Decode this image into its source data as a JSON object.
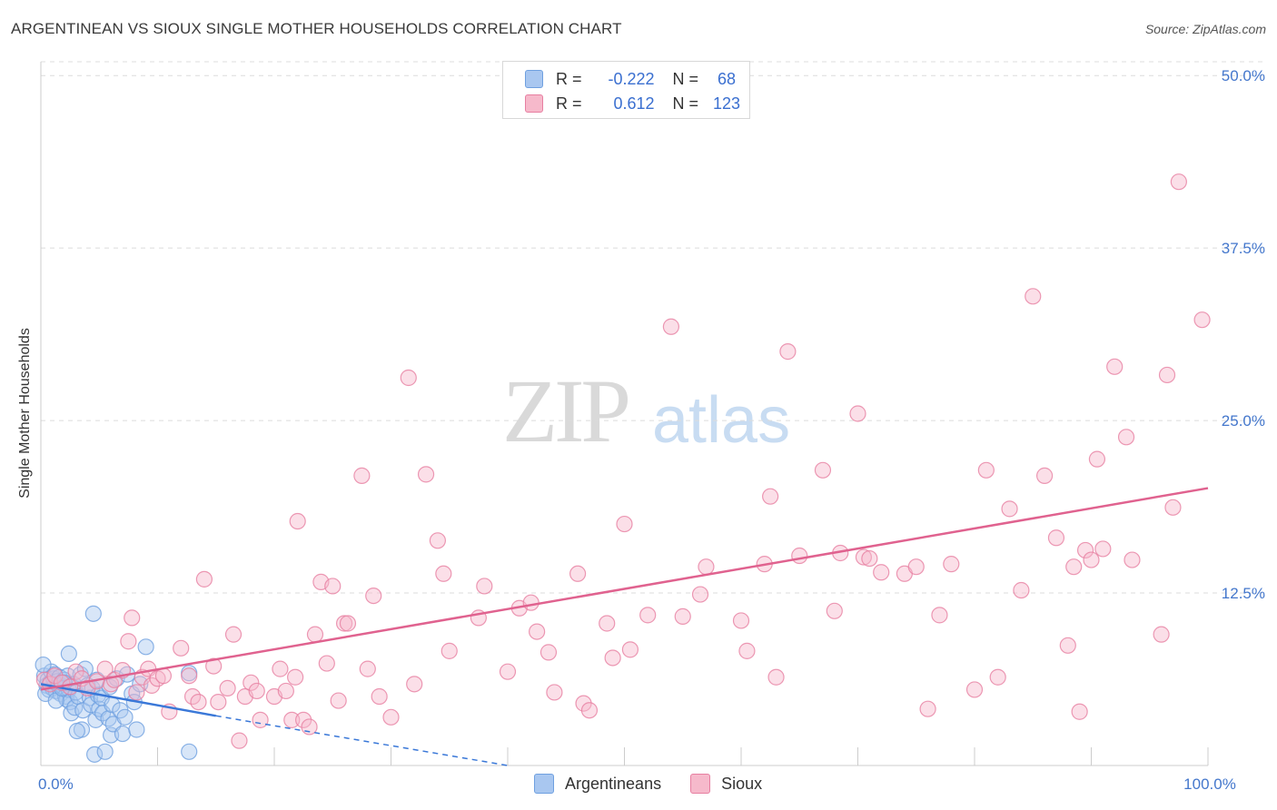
{
  "title": "ARGENTINEAN VS SIOUX SINGLE MOTHER HOUSEHOLDS CORRELATION CHART",
  "source": "Source: ZipAtlas.com",
  "watermark": {
    "zip": "ZIP",
    "atlas": "atlas"
  },
  "legend": {
    "rows": [
      {
        "r_label": "R =",
        "r_value": "-0.222",
        "n_label": "N =",
        "n_value": "68",
        "color": "#a9c7f0"
      },
      {
        "r_label": "R =",
        "r_value": "0.612",
        "n_label": "N =",
        "n_value": "123",
        "color": "#f6b9cb"
      }
    ]
  },
  "bottom_legend": [
    {
      "label": "Argentineans",
      "color": "#a9c7f0"
    },
    {
      "label": "Sioux",
      "color": "#f6b9cb"
    }
  ],
  "chart_data": {
    "type": "scatter",
    "title": "ARGENTINEAN VS SIOUX SINGLE MOTHER HOUSEHOLDS CORRELATION CHART",
    "xlabel": "",
    "ylabel": "Single Mother Households",
    "xlim": [
      0,
      100
    ],
    "ylim": [
      0,
      51
    ],
    "y_ticks": [
      {
        "value": 12.5,
        "label": "12.5%"
      },
      {
        "value": 25.0,
        "label": "25.0%"
      },
      {
        "value": 37.5,
        "label": "37.5%"
      },
      {
        "value": 50.0,
        "label": "50.0%"
      }
    ],
    "x_ticks": [
      {
        "value": 0,
        "label": "0.0%"
      },
      {
        "value": 100,
        "label": "100.0%"
      }
    ],
    "series": [
      {
        "name": "Argentineans",
        "color": "#6fa0e0",
        "fill": "#a9c7f0",
        "trend": {
          "x0": 0,
          "y0": 5.9,
          "x1": 15,
          "y1": 3.6,
          "dash_to_x": 40,
          "dash_to_y": 0.0,
          "color": "#3a78d8"
        },
        "points": [
          [
            0.3,
            6.5
          ],
          [
            0.5,
            5.8
          ],
          [
            0.6,
            6.2
          ],
          [
            0.7,
            5.5
          ],
          [
            0.8,
            6.0
          ],
          [
            0.9,
            6.8
          ],
          [
            1.0,
            5.6
          ],
          [
            1.1,
            6.3
          ],
          [
            1.2,
            6.6
          ],
          [
            1.3,
            5.4
          ],
          [
            1.4,
            6.1
          ],
          [
            1.5,
            5.9
          ],
          [
            1.6,
            6.4
          ],
          [
            1.7,
            5.2
          ],
          [
            1.8,
            6.0
          ],
          [
            1.9,
            5.7
          ],
          [
            2.0,
            6.2
          ],
          [
            2.1,
            5.0
          ],
          [
            2.2,
            4.8
          ],
          [
            2.3,
            6.5
          ],
          [
            2.4,
            5.5
          ],
          [
            2.5,
            4.6
          ],
          [
            2.6,
            3.8
          ],
          [
            2.8,
            5.9
          ],
          [
            2.9,
            4.2
          ],
          [
            3.0,
            5.3
          ],
          [
            3.2,
            5.0
          ],
          [
            3.4,
            6.6
          ],
          [
            3.5,
            2.6
          ],
          [
            3.6,
            4.0
          ],
          [
            3.8,
            7.0
          ],
          [
            4.0,
            5.8
          ],
          [
            4.2,
            4.9
          ],
          [
            4.3,
            4.4
          ],
          [
            4.4,
            5.6
          ],
          [
            4.6,
            0.8
          ],
          [
            4.7,
            3.3
          ],
          [
            4.8,
            6.2
          ],
          [
            4.9,
            5.1
          ],
          [
            5.0,
            4.1
          ],
          [
            5.2,
            4.9
          ],
          [
            5.3,
            3.8
          ],
          [
            5.5,
            1.0
          ],
          [
            5.8,
            3.4
          ],
          [
            5.9,
            5.7
          ],
          [
            6.0,
            2.2
          ],
          [
            6.1,
            4.4
          ],
          [
            6.2,
            3.0
          ],
          [
            6.5,
            6.3
          ],
          [
            6.8,
            4.0
          ],
          [
            7.0,
            2.3
          ],
          [
            7.2,
            3.5
          ],
          [
            7.4,
            6.6
          ],
          [
            7.8,
            5.2
          ],
          [
            8.0,
            4.6
          ],
          [
            8.2,
            2.6
          ],
          [
            9.0,
            8.6
          ],
          [
            2.4,
            8.1
          ],
          [
            4.5,
            11.0
          ],
          [
            12.7,
            1.0
          ],
          [
            12.7,
            6.7
          ],
          [
            0.2,
            7.3
          ],
          [
            0.4,
            5.2
          ],
          [
            1.3,
            4.7
          ],
          [
            1.8,
            5.6
          ],
          [
            2.0,
            6.0
          ],
          [
            3.1,
            2.5
          ],
          [
            8.5,
            5.9
          ]
        ]
      },
      {
        "name": "Sioux",
        "color": "#e77fa1",
        "fill": "#f6b9cb",
        "trend": {
          "x0": 0,
          "y0": 5.5,
          "x1": 100,
          "y1": 20.1,
          "color": "#e0628f"
        },
        "points": [
          [
            0.3,
            6.2
          ],
          [
            0.8,
            5.9
          ],
          [
            1.2,
            6.5
          ],
          [
            1.8,
            6.0
          ],
          [
            2.5,
            5.7
          ],
          [
            3.0,
            6.8
          ],
          [
            3.5,
            6.3
          ],
          [
            4.0,
            5.6
          ],
          [
            4.8,
            6.1
          ],
          [
            5.5,
            7.0
          ],
          [
            6.0,
            5.9
          ],
          [
            6.3,
            6.2
          ],
          [
            7.0,
            6.9
          ],
          [
            7.5,
            9.0
          ],
          [
            7.8,
            10.7
          ],
          [
            8.2,
            5.3
          ],
          [
            8.7,
            6.4
          ],
          [
            9.2,
            7.0
          ],
          [
            9.5,
            5.8
          ],
          [
            10.0,
            6.3
          ],
          [
            10.5,
            6.5
          ],
          [
            11.0,
            3.9
          ],
          [
            12.0,
            8.5
          ],
          [
            12.7,
            6.5
          ],
          [
            13.0,
            5.0
          ],
          [
            13.5,
            4.6
          ],
          [
            14.0,
            13.5
          ],
          [
            14.8,
            7.2
          ],
          [
            15.2,
            4.6
          ],
          [
            16.0,
            5.6
          ],
          [
            16.5,
            9.5
          ],
          [
            17.0,
            1.8
          ],
          [
            17.5,
            5.0
          ],
          [
            18.0,
            6.0
          ],
          [
            18.5,
            5.4
          ],
          [
            18.8,
            3.3
          ],
          [
            20.0,
            5.0
          ],
          [
            20.5,
            7.0
          ],
          [
            21.0,
            5.4
          ],
          [
            21.5,
            3.3
          ],
          [
            21.8,
            6.4
          ],
          [
            22.0,
            17.7
          ],
          [
            22.5,
            3.3
          ],
          [
            23.0,
            2.8
          ],
          [
            23.5,
            9.5
          ],
          [
            24.0,
            13.3
          ],
          [
            24.5,
            7.4
          ],
          [
            25.0,
            13.0
          ],
          [
            25.5,
            4.7
          ],
          [
            26.0,
            10.3
          ],
          [
            26.3,
            10.3
          ],
          [
            27.5,
            21.0
          ],
          [
            28.0,
            7.0
          ],
          [
            28.5,
            12.3
          ],
          [
            29.0,
            5.0
          ],
          [
            30.0,
            3.5
          ],
          [
            31.5,
            28.1
          ],
          [
            32.0,
            5.9
          ],
          [
            33.0,
            21.1
          ],
          [
            34.0,
            16.3
          ],
          [
            34.5,
            13.9
          ],
          [
            35.0,
            8.3
          ],
          [
            37.5,
            10.7
          ],
          [
            38.0,
            13.0
          ],
          [
            40.0,
            6.8
          ],
          [
            41.0,
            11.4
          ],
          [
            42.0,
            11.8
          ],
          [
            42.5,
            9.7
          ],
          [
            43.5,
            8.2
          ],
          [
            44.0,
            5.3
          ],
          [
            46.0,
            13.9
          ],
          [
            46.5,
            4.5
          ],
          [
            47.0,
            4.0
          ],
          [
            48.5,
            10.3
          ],
          [
            49.0,
            7.8
          ],
          [
            50.0,
            17.5
          ],
          [
            50.5,
            8.4
          ],
          [
            52.0,
            10.9
          ],
          [
            54.0,
            31.8
          ],
          [
            55.0,
            10.8
          ],
          [
            56.5,
            12.4
          ],
          [
            57.0,
            14.4
          ],
          [
            60.0,
            10.5
          ],
          [
            60.5,
            8.3
          ],
          [
            62.0,
            14.6
          ],
          [
            62.5,
            19.5
          ],
          [
            63.0,
            6.4
          ],
          [
            64.0,
            30.0
          ],
          [
            65.0,
            15.2
          ],
          [
            67.0,
            21.4
          ],
          [
            68.0,
            11.2
          ],
          [
            68.5,
            15.4
          ],
          [
            70.0,
            25.5
          ],
          [
            70.5,
            15.1
          ],
          [
            71.0,
            15.0
          ],
          [
            72.0,
            14.0
          ],
          [
            74.0,
            13.9
          ],
          [
            75.0,
            14.4
          ],
          [
            76.0,
            4.1
          ],
          [
            77.0,
            10.9
          ],
          [
            78.0,
            14.6
          ],
          [
            80.0,
            5.5
          ],
          [
            81.0,
            21.4
          ],
          [
            82.0,
            6.4
          ],
          [
            83.0,
            18.6
          ],
          [
            84.0,
            12.7
          ],
          [
            85.0,
            34.0
          ],
          [
            86.0,
            21.0
          ],
          [
            87.0,
            16.5
          ],
          [
            88.0,
            8.7
          ],
          [
            88.5,
            14.4
          ],
          [
            89.0,
            3.9
          ],
          [
            89.5,
            15.6
          ],
          [
            90.0,
            14.9
          ],
          [
            90.5,
            22.2
          ],
          [
            91.0,
            15.7
          ],
          [
            92.0,
            28.9
          ],
          [
            93.0,
            23.8
          ],
          [
            93.5,
            14.9
          ],
          [
            96.0,
            9.5
          ],
          [
            96.5,
            28.3
          ],
          [
            97.0,
            18.7
          ],
          [
            97.5,
            42.3
          ],
          [
            99.5,
            32.3
          ]
        ]
      }
    ]
  }
}
